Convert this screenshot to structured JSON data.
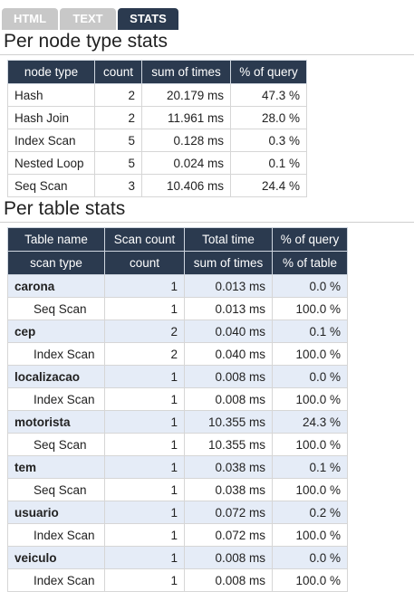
{
  "tabs": [
    {
      "label": "HTML",
      "active": false
    },
    {
      "label": "TEXT",
      "active": false
    },
    {
      "label": "STATS",
      "active": true
    }
  ],
  "node_section": {
    "title": "Per node type stats",
    "headers": [
      "node type",
      "count",
      "sum of times",
      "% of query"
    ],
    "rows": [
      {
        "node_type": "Hash",
        "count": "2",
        "sum": "20.179 ms",
        "pct": "47.3 %"
      },
      {
        "node_type": "Hash Join",
        "count": "2",
        "sum": "11.961 ms",
        "pct": "28.0 %"
      },
      {
        "node_type": "Index Scan",
        "count": "5",
        "sum": "0.128 ms",
        "pct": "0.3 %"
      },
      {
        "node_type": "Nested Loop",
        "count": "5",
        "sum": "0.024 ms",
        "pct": "0.1 %"
      },
      {
        "node_type": "Seq Scan",
        "count": "3",
        "sum": "10.406 ms",
        "pct": "24.4 %"
      }
    ]
  },
  "table_section": {
    "title": "Per table stats",
    "headers_row1": [
      "Table name",
      "Scan count",
      "Total time",
      "% of query"
    ],
    "headers_row2": [
      "scan type",
      "count",
      "sum of times",
      "% of table"
    ],
    "tables": [
      {
        "name": "carona",
        "count": "1",
        "time": "0.013 ms",
        "pct": "0.0 %",
        "scans": [
          {
            "type": "Seq Scan",
            "count": "1",
            "time": "0.013 ms",
            "pct": "100.0 %"
          }
        ]
      },
      {
        "name": "cep",
        "count": "2",
        "time": "0.040 ms",
        "pct": "0.1 %",
        "scans": [
          {
            "type": "Index Scan",
            "count": "2",
            "time": "0.040 ms",
            "pct": "100.0 %"
          }
        ]
      },
      {
        "name": "localizacao",
        "count": "1",
        "time": "0.008 ms",
        "pct": "0.0 %",
        "scans": [
          {
            "type": "Index Scan",
            "count": "1",
            "time": "0.008 ms",
            "pct": "100.0 %"
          }
        ]
      },
      {
        "name": "motorista",
        "count": "1",
        "time": "10.355 ms",
        "pct": "24.3 %",
        "scans": [
          {
            "type": "Seq Scan",
            "count": "1",
            "time": "10.355 ms",
            "pct": "100.0 %"
          }
        ]
      },
      {
        "name": "tem",
        "count": "1",
        "time": "0.038 ms",
        "pct": "0.1 %",
        "scans": [
          {
            "type": "Seq Scan",
            "count": "1",
            "time": "0.038 ms",
            "pct": "100.0 %"
          }
        ]
      },
      {
        "name": "usuario",
        "count": "1",
        "time": "0.072 ms",
        "pct": "0.2 %",
        "scans": [
          {
            "type": "Index Scan",
            "count": "1",
            "time": "0.072 ms",
            "pct": "100.0 %"
          }
        ]
      },
      {
        "name": "veiculo",
        "count": "1",
        "time": "0.008 ms",
        "pct": "0.0 %",
        "scans": [
          {
            "type": "Index Scan",
            "count": "1",
            "time": "0.008 ms",
            "pct": "100.0 %"
          }
        ]
      }
    ]
  },
  "colors": {
    "header_bg": "#2b3a4f",
    "tab_inactive_bg": "#c8c8c8",
    "table_row_bg": "#e5ecf7"
  }
}
